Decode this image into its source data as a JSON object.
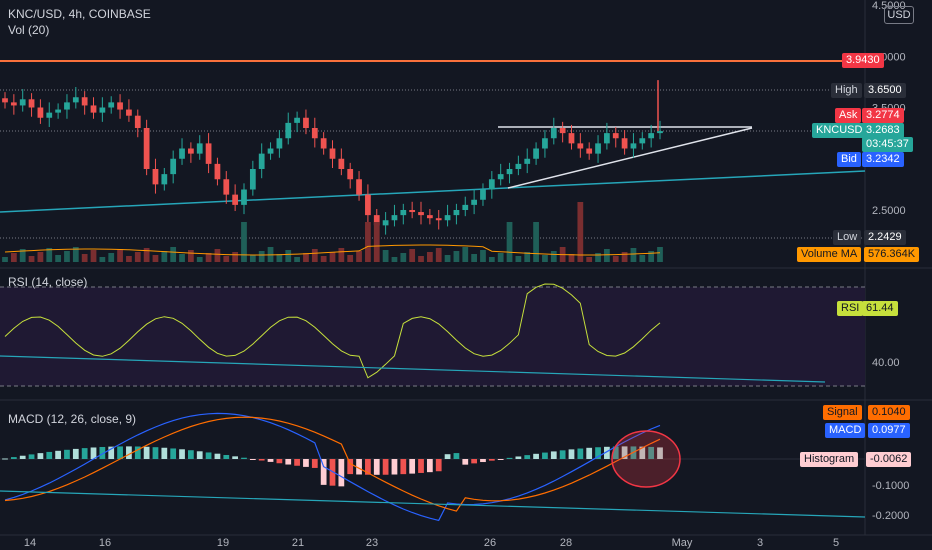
{
  "header": {
    "symbol_line": "KNC/USD, 4h, COINBASE",
    "vol_line": "Vol (20)",
    "currency_badge": "USD"
  },
  "price_axis": {
    "ticks": [
      {
        "label": "4.5000",
        "value": 4.5
      },
      {
        "label": "4.0000",
        "value": 4.0
      },
      {
        "label": "3.5000",
        "value": 3.5
      },
      {
        "label": "2.5000",
        "value": 2.5
      }
    ]
  },
  "price_tags": {
    "resistance": {
      "label": "",
      "value": "3.9430",
      "color": "#f23645"
    },
    "high": {
      "label": "High",
      "value": "3.6500",
      "color": "#2a2e39"
    },
    "ask": {
      "label": "Ask",
      "value": "3.2774",
      "color": "#f23645"
    },
    "last": {
      "label": "KNCUSD",
      "value": "3.2683",
      "countdown": "03:45:37",
      "color": "#26a69a"
    },
    "bid": {
      "label": "Bid",
      "value": "3.2342",
      "color": "#2962ff"
    },
    "low": {
      "label": "Low",
      "value": "2.2429",
      "color": "#2a2e39"
    },
    "volume_ma": {
      "label": "Volume MA",
      "value": "576.364K",
      "color": "#ff9800"
    }
  },
  "rsi": {
    "legend": "RSI (14, close)",
    "tag_label": "RSI",
    "tag_value": "61.44",
    "axis_label": "40.00",
    "color": "#c6e03c"
  },
  "macd": {
    "legend": "MACD (12, 26, close, 9)",
    "signal_label": "Signal",
    "signal_value": "0.1040",
    "macd_label": "MACD",
    "macd_value": "0.0977",
    "hist_label": "Histogram",
    "hist_value": "-0.0062",
    "axis_ticks": [
      {
        "label": "-0.1000",
        "value": -0.1
      },
      {
        "label": "-0.2000",
        "value": -0.2
      }
    ]
  },
  "time_axis": [
    "14",
    "16",
    "19",
    "21",
    "23",
    "26",
    "28",
    "May",
    "3",
    "5"
  ],
  "chart_data": [
    {
      "type": "candlestick",
      "title": "KNC/USD, 4h, COINBASE",
      "unit": "USD",
      "approximate_closes": [
        3.55,
        3.52,
        3.58,
        3.5,
        3.4,
        3.45,
        3.48,
        3.55,
        3.6,
        3.52,
        3.45,
        3.5,
        3.55,
        3.48,
        3.42,
        3.3,
        2.9,
        2.75,
        2.85,
        3.0,
        3.1,
        3.05,
        3.15,
        2.95,
        2.8,
        2.65,
        2.55,
        2.7,
        2.9,
        3.05,
        3.1,
        3.2,
        3.35,
        3.4,
        3.3,
        3.2,
        3.1,
        3.0,
        2.9,
        2.8,
        2.65,
        2.45,
        2.35,
        2.4,
        2.45,
        2.5,
        2.48,
        2.45,
        2.42,
        2.4,
        2.45,
        2.5,
        2.55,
        2.6,
        2.7,
        2.8,
        2.85,
        2.9,
        2.95,
        3.0,
        3.1,
        3.2,
        3.3,
        3.25,
        3.15,
        3.1,
        3.05,
        3.15,
        3.25,
        3.2,
        3.1,
        3.15,
        3.2,
        3.25,
        3.27
      ],
      "high": 3.65,
      "low": 2.2429,
      "last": 3.2683,
      "horizontal_resistance": 3.943
    },
    {
      "type": "bar",
      "title": "Vol (20)",
      "series": [
        {
          "name": "Volume MA",
          "last": "576.364K"
        }
      ]
    },
    {
      "type": "line",
      "title": "RSI (14, close)",
      "last": 61.44,
      "reference_levels": [
        40,
        70,
        30
      ]
    },
    {
      "type": "line",
      "title": "MACD (12, 26, close, 9)",
      "series": [
        {
          "name": "MACD",
          "last": 0.0977
        },
        {
          "name": "Signal",
          "last": 0.104
        },
        {
          "name": "Histogram",
          "last": -0.0062
        }
      ]
    }
  ]
}
